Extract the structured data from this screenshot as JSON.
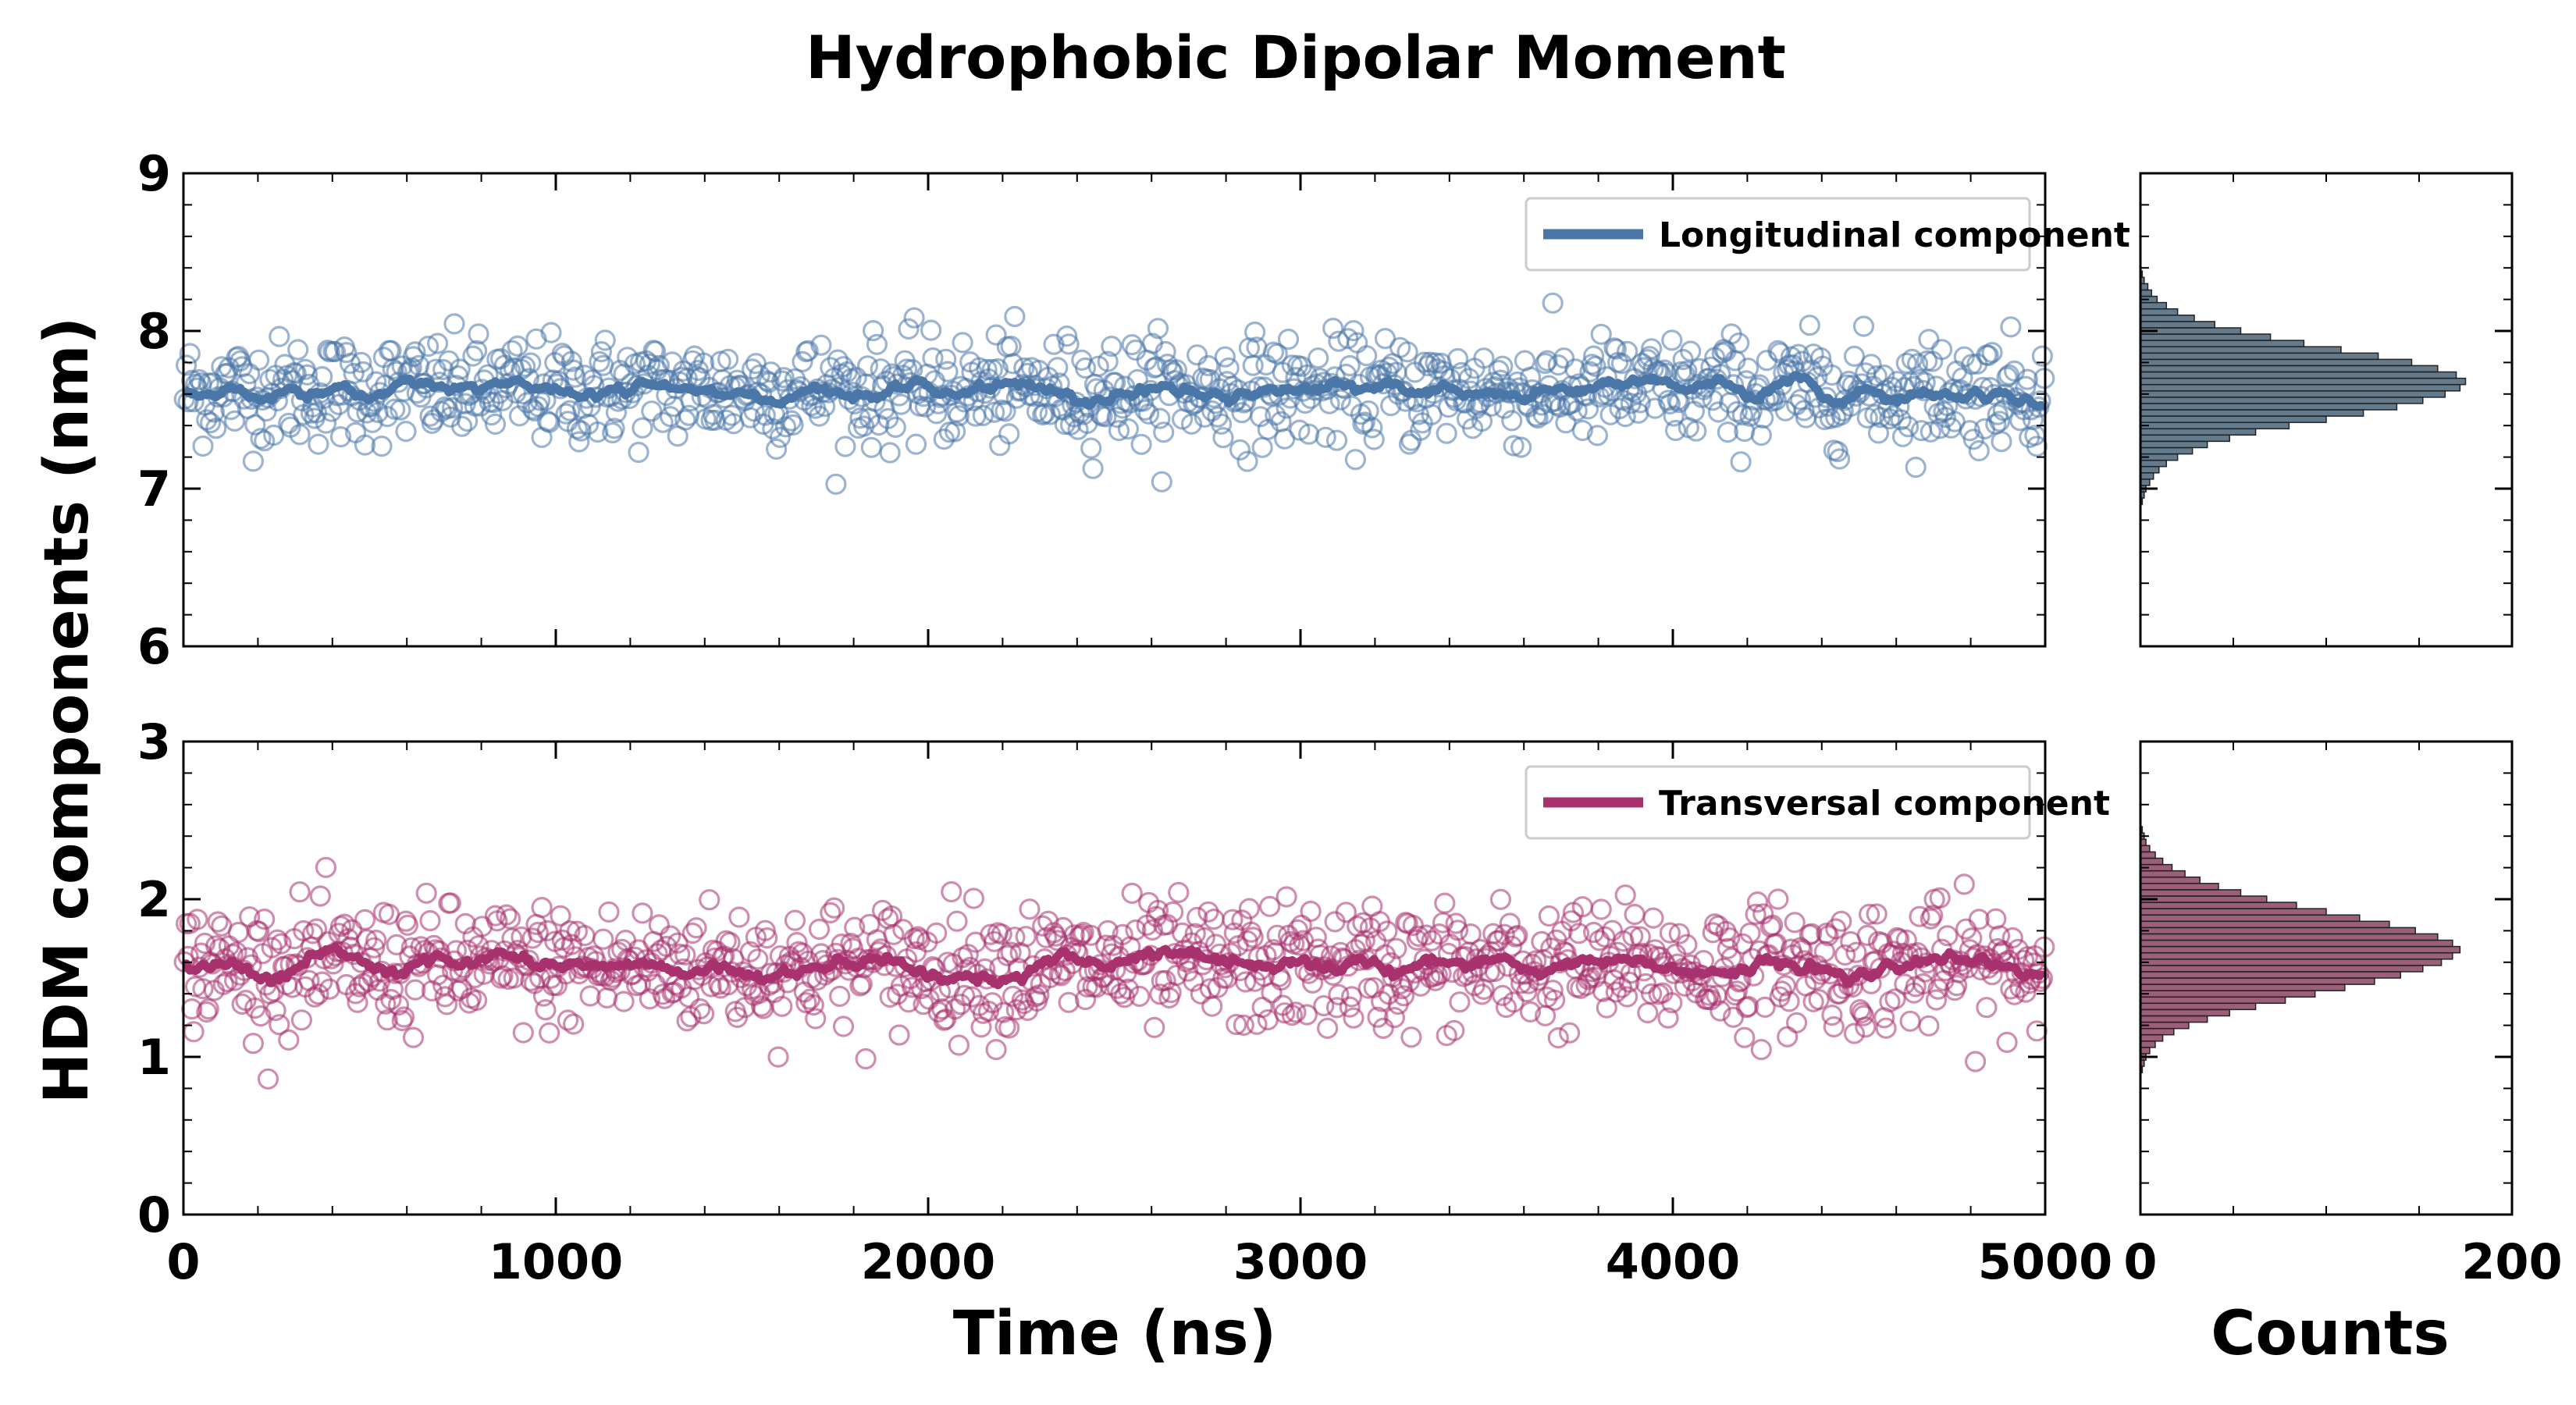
{
  "chart_data": [
    {
      "type": "scatter",
      "panel": "top",
      "title": "Hydrophobic Dipolar Moment",
      "ylabel": "HDM components (nm)",
      "xlim": [
        0,
        5000
      ],
      "ylim": [
        6,
        9
      ],
      "xticks": [
        "0",
        "1000",
        "2000",
        "3000",
        "4000",
        "5000"
      ],
      "yticks": [
        "6",
        "7",
        "8",
        "9"
      ],
      "color": "#4a76a8",
      "series": [
        {
          "name": "Longitudinal component",
          "role": "running-average line",
          "mean": 7.62
        },
        {
          "role": "samples",
          "mean": 7.62,
          "spread": 0.17,
          "count": 1000,
          "min": 6.93,
          "max": 8.18
        }
      ],
      "grid": false,
      "legend": "top-right"
    },
    {
      "type": "scatter",
      "panel": "bottom",
      "xlabel": "Time (ns)",
      "xlim": [
        0,
        5000
      ],
      "ylim": [
        0,
        3
      ],
      "xticks": [
        "0",
        "1000",
        "2000",
        "3000",
        "4000",
        "5000"
      ],
      "yticks": [
        "0",
        "1",
        "2",
        "3"
      ],
      "color": "#a8326e",
      "series": [
        {
          "name": "Transversal component",
          "role": "running-average line",
          "mean": 1.57
        },
        {
          "role": "samples",
          "mean": 1.57,
          "spread": 0.2,
          "count": 1000,
          "min": 0.86,
          "max": 2.22
        }
      ],
      "grid": false,
      "legend": "top-right"
    },
    {
      "type": "bar",
      "orientation": "horizontal",
      "panel": "top-histogram",
      "xlabel": "",
      "xlim": [
        0,
        200
      ],
      "ylim": [
        6,
        9
      ],
      "bins": {
        "start": 6.9,
        "width": 0.04
      },
      "counts": [
        1,
        2,
        3,
        5,
        7,
        10,
        14,
        20,
        28,
        36,
        48,
        62,
        80,
        100,
        120,
        138,
        152,
        164,
        172,
        175,
        170,
        160,
        146,
        128,
        108,
        88,
        70,
        54,
        40,
        29,
        20,
        14,
        9,
        6,
        4,
        2,
        1
      ],
      "color": "#2f4f66"
    },
    {
      "type": "bar",
      "orientation": "horizontal",
      "panel": "bottom-histogram",
      "xlabel": "Counts",
      "xlim": [
        0,
        200
      ],
      "ylim": [
        0,
        3
      ],
      "xticks": [
        "0",
        "200"
      ],
      "bins": {
        "start": 0.9,
        "width": 0.04
      },
      "counts": [
        1,
        2,
        3,
        5,
        8,
        12,
        18,
        26,
        36,
        48,
        62,
        78,
        94,
        110,
        126,
        140,
        152,
        162,
        168,
        172,
        168,
        160,
        148,
        134,
        118,
        100,
        84,
        68,
        54,
        42,
        32,
        24,
        17,
        12,
        8,
        5,
        3,
        2,
        1
      ],
      "color": "#7a2a4e"
    }
  ]
}
